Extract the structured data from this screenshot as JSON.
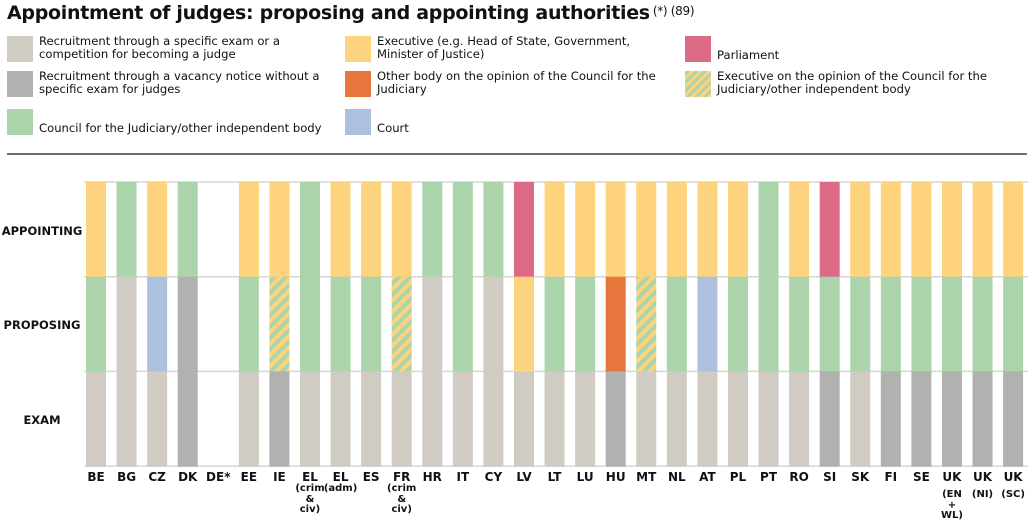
{
  "title": "Appointment of judges: proposing and appointing authorities",
  "title_notes": "(*) (89)",
  "legend": [
    {
      "key": "exam",
      "label": "Recruitment through a specific exam or a competition for becoming a judge",
      "color": "#d0ccc4"
    },
    {
      "key": "vacancy",
      "label": "Recruitment through a vacancy notice without a specific exam for judges",
      "color": "#b1b1b0"
    },
    {
      "key": "council",
      "label": "Council for the Judiciary/other independent body",
      "color": "#abd4ab"
    },
    {
      "key": "executive",
      "label": "Executive (e.g. Head of State, Government, Minister of Justice)",
      "color": "#fdd47d"
    },
    {
      "key": "other_body",
      "label": "Other body on the opinion of the Council for the Judiciary",
      "color": "#e6763c"
    },
    {
      "key": "court",
      "label": "Court",
      "color": "#adc0df"
    },
    {
      "key": "parliament",
      "label": "Parliament",
      "color": "#dc6a86"
    },
    {
      "key": "exec_on_council",
      "label": "Executive on the opinion of the Council for the Judiciary/other independent body",
      "color": "striped:#fdd47d/#abd4ab"
    }
  ],
  "chart_data": {
    "type": "table",
    "title": "Appointment of judges: proposing and appointing authorities",
    "rows": [
      "APPOINTING",
      "PROPOSING",
      "EXAM"
    ],
    "categories": [
      {
        "code": "BE",
        "sub": ""
      },
      {
        "code": "BG",
        "sub": ""
      },
      {
        "code": "CZ",
        "sub": ""
      },
      {
        "code": "DK",
        "sub": ""
      },
      {
        "code": "DE*",
        "sub": ""
      },
      {
        "code": "EE",
        "sub": ""
      },
      {
        "code": "IE",
        "sub": ""
      },
      {
        "code": "EL",
        "sub": "(crim & civ)"
      },
      {
        "code": "EL",
        "sub": "(adm)"
      },
      {
        "code": "ES",
        "sub": ""
      },
      {
        "code": "FR",
        "sub": "(crim & civ)"
      },
      {
        "code": "HR",
        "sub": ""
      },
      {
        "code": "IT",
        "sub": ""
      },
      {
        "code": "CY",
        "sub": ""
      },
      {
        "code": "LV",
        "sub": ""
      },
      {
        "code": "LT",
        "sub": ""
      },
      {
        "code": "LU",
        "sub": ""
      },
      {
        "code": "HU",
        "sub": ""
      },
      {
        "code": "MT",
        "sub": ""
      },
      {
        "code": "NL",
        "sub": ""
      },
      {
        "code": "AT",
        "sub": ""
      },
      {
        "code": "PL",
        "sub": ""
      },
      {
        "code": "PT",
        "sub": ""
      },
      {
        "code": "RO",
        "sub": ""
      },
      {
        "code": "SI",
        "sub": ""
      },
      {
        "code": "SK",
        "sub": ""
      },
      {
        "code": "FI",
        "sub": ""
      },
      {
        "code": "SE",
        "sub": ""
      },
      {
        "code": "UK",
        "sub": "(EN + WL)"
      },
      {
        "code": "UK",
        "sub": "(NI)"
      },
      {
        "code": "UK",
        "sub": "(SC)"
      }
    ],
    "values": [
      {
        "appointing": "executive",
        "proposing": "council",
        "exam": "exam"
      },
      {
        "appointing": "council",
        "proposing": "exam",
        "exam": "exam"
      },
      {
        "appointing": "executive",
        "proposing": "court",
        "exam": "exam"
      },
      {
        "appointing": "council",
        "proposing": "vacancy",
        "exam": "vacancy"
      },
      {
        "appointing": null,
        "proposing": null,
        "exam": null
      },
      {
        "appointing": "executive",
        "proposing": "council",
        "exam": "exam"
      },
      {
        "appointing": "executive",
        "proposing": "exec_on_council",
        "exam": "vacancy"
      },
      {
        "appointing": "council",
        "proposing": "council",
        "exam": "exam"
      },
      {
        "appointing": "executive",
        "proposing": "council",
        "exam": "exam"
      },
      {
        "appointing": "executive",
        "proposing": "council",
        "exam": "exam"
      },
      {
        "appointing": "executive",
        "proposing": "exec_on_council",
        "exam": "exam"
      },
      {
        "appointing": "council",
        "proposing": "exam",
        "exam": "exam"
      },
      {
        "appointing": "council",
        "proposing": "council",
        "exam": "exam"
      },
      {
        "appointing": "council",
        "proposing": "exam",
        "exam": "exam"
      },
      {
        "appointing": "parliament",
        "proposing": "executive",
        "exam": "exam"
      },
      {
        "appointing": "executive",
        "proposing": "council",
        "exam": "exam"
      },
      {
        "appointing": "executive",
        "proposing": "council",
        "exam": "exam"
      },
      {
        "appointing": "executive",
        "proposing": "other_body",
        "exam": "vacancy"
      },
      {
        "appointing": "executive",
        "proposing": "exec_on_council",
        "exam": "exam"
      },
      {
        "appointing": "executive",
        "proposing": "council",
        "exam": "exam"
      },
      {
        "appointing": "executive",
        "proposing": "court",
        "exam": "exam"
      },
      {
        "appointing": "executive",
        "proposing": "council",
        "exam": "exam"
      },
      {
        "appointing": "council",
        "proposing": "council",
        "exam": "exam"
      },
      {
        "appointing": "executive",
        "proposing": "council",
        "exam": "exam"
      },
      {
        "appointing": "parliament",
        "proposing": "council",
        "exam": "vacancy"
      },
      {
        "appointing": "executive",
        "proposing": "council",
        "exam": "exam"
      },
      {
        "appointing": "executive",
        "proposing": "council",
        "exam": "vacancy"
      },
      {
        "appointing": "executive",
        "proposing": "council",
        "exam": "vacancy"
      },
      {
        "appointing": "executive",
        "proposing": "council",
        "exam": "vacancy"
      },
      {
        "appointing": "executive",
        "proposing": "council",
        "exam": "vacancy"
      },
      {
        "appointing": "executive",
        "proposing": "council",
        "exam": "vacancy"
      }
    ],
    "grid": true,
    "legend_position": "top"
  }
}
